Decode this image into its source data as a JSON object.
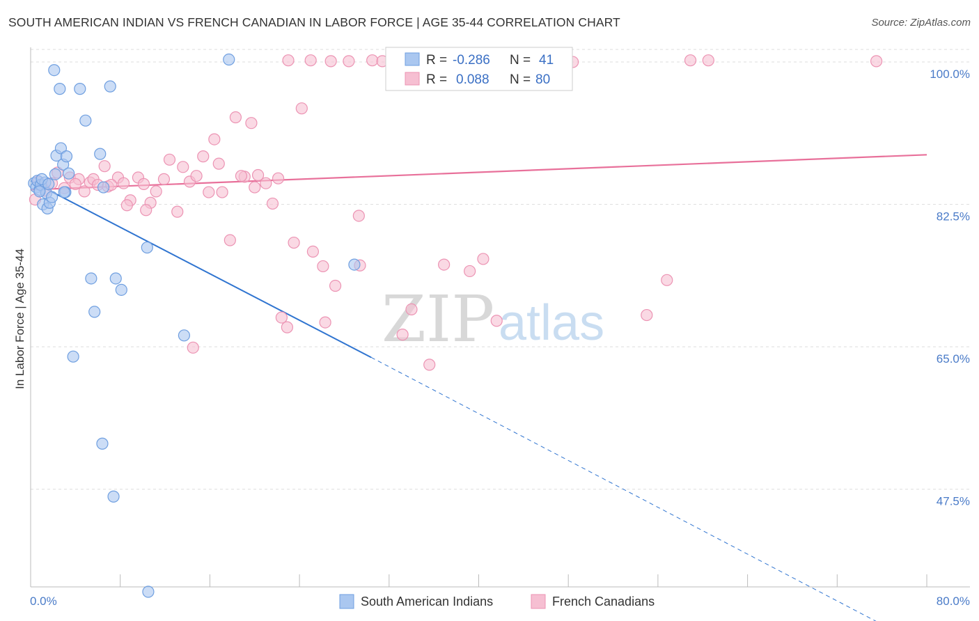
{
  "header": {
    "title": "SOUTH AMERICAN INDIAN VS FRENCH CANADIAN IN LABOR FORCE | AGE 35-44 CORRELATION CHART",
    "source": "Source: ZipAtlas.com"
  },
  "watermark": {
    "zip": "ZIP",
    "atlas": "atlas"
  },
  "colors": {
    "blue_fill": "#aac7f0",
    "blue_stroke": "#6f9fe0",
    "blue_line": "#2f74d0",
    "pink_fill": "#f6bfd2",
    "pink_stroke": "#ec93b3",
    "pink_line": "#e8709a",
    "grid": "#dddddd",
    "axis_text": "#4a7bc8"
  },
  "legend": {
    "rows": [
      {
        "r_label": "R =",
        "r_value": "-0.286",
        "n_label": "N =",
        "n_value": "41"
      },
      {
        "r_label": "R =",
        "r_value": "0.088",
        "n_label": "N =",
        "n_value": "80"
      }
    ]
  },
  "chart_data": {
    "type": "scatter",
    "title": "SOUTH AMERICAN INDIAN VS FRENCH CANADIAN IN LABOR FORCE | AGE 35-44 CORRELATION CHART",
    "xlabel": "",
    "ylabel": "In Labor Force | Age 35-44",
    "xlim": [
      0,
      80
    ],
    "ylim": [
      35.5,
      101.8
    ],
    "x_tick_labels": [
      "0.0%",
      "80.0%"
    ],
    "y_ticks": [
      47.5,
      65.0,
      82.5,
      100.0
    ],
    "y_tick_labels": [
      "47.5%",
      "65.0%",
      "82.5%",
      "100.0%"
    ],
    "grid": true,
    "legend_position": "top-center",
    "series": [
      {
        "name": "South American Indians",
        "r": -0.286,
        "n": 41,
        "trend": {
          "x0": 0,
          "y0": 85.4,
          "x1": 30.4,
          "y1": 63.7,
          "dash_to_x": 77.8,
          "dash_to_y": 29.6
        },
        "points": [
          [
            0.3,
            85.1
          ],
          [
            0.5,
            84.6
          ],
          [
            0.6,
            85.4
          ],
          [
            0.8,
            84.3
          ],
          [
            0.9,
            84.9
          ],
          [
            1.1,
            82.5
          ],
          [
            1.3,
            85.2
          ],
          [
            1.4,
            83.9
          ],
          [
            1.5,
            82.0
          ],
          [
            1.7,
            82.7
          ],
          [
            1.9,
            83.4
          ],
          [
            2.1,
            99.0
          ],
          [
            2.3,
            88.5
          ],
          [
            2.6,
            96.7
          ],
          [
            2.7,
            89.4
          ],
          [
            2.9,
            87.4
          ],
          [
            3.1,
            84.0
          ],
          [
            3.2,
            88.4
          ],
          [
            3.4,
            86.3
          ],
          [
            4.4,
            96.7
          ],
          [
            4.9,
            92.8
          ],
          [
            5.4,
            73.4
          ],
          [
            5.7,
            69.3
          ],
          [
            6.2,
            88.7
          ],
          [
            6.5,
            84.6
          ],
          [
            7.1,
            97.0
          ],
          [
            7.6,
            73.4
          ],
          [
            8.1,
            72.0
          ],
          [
            10.4,
            77.2
          ],
          [
            13.7,
            66.4
          ],
          [
            17.7,
            100.3
          ],
          [
            28.9,
            75.1
          ],
          [
            3.8,
            63.8
          ],
          [
            6.4,
            53.1
          ],
          [
            7.4,
            46.6
          ],
          [
            10.5,
            34.9
          ],
          [
            0.8,
            84.1
          ],
          [
            2.2,
            86.2
          ],
          [
            1.0,
            85.6
          ],
          [
            3.0,
            84.0
          ],
          [
            1.6,
            85.0
          ]
        ]
      },
      {
        "name": "French Canadians",
        "r": 0.088,
        "n": 80,
        "trend": {
          "x0": 0,
          "y0": 84.3,
          "x1": 80,
          "y1": 88.6
        },
        "points": [
          [
            0.4,
            83.1
          ],
          [
            0.7,
            85.3
          ],
          [
            1.0,
            84.8
          ],
          [
            1.3,
            84.2
          ],
          [
            1.9,
            85.1
          ],
          [
            2.4,
            86.4
          ],
          [
            3.0,
            84.5
          ],
          [
            3.5,
            85.8
          ],
          [
            4.3,
            85.6
          ],
          [
            4.8,
            84.1
          ],
          [
            5.3,
            85.2
          ],
          [
            5.6,
            85.6
          ],
          [
            6.0,
            84.9
          ],
          [
            6.6,
            87.2
          ],
          [
            6.9,
            84.7
          ],
          [
            7.8,
            85.8
          ],
          [
            8.3,
            85.1
          ],
          [
            8.9,
            83.0
          ],
          [
            9.6,
            85.8
          ],
          [
            10.1,
            85.0
          ],
          [
            10.7,
            82.7
          ],
          [
            11.2,
            84.1
          ],
          [
            11.9,
            85.6
          ],
          [
            12.4,
            88.0
          ],
          [
            13.1,
            81.6
          ],
          [
            13.6,
            87.1
          ],
          [
            14.2,
            85.3
          ],
          [
            14.8,
            86.0
          ],
          [
            15.4,
            88.4
          ],
          [
            15.9,
            84.0
          ],
          [
            16.4,
            90.5
          ],
          [
            17.1,
            84.0
          ],
          [
            17.8,
            78.1
          ],
          [
            18.3,
            93.2
          ],
          [
            19.1,
            85.9
          ],
          [
            19.7,
            92.5
          ],
          [
            20.3,
            86.1
          ],
          [
            21.0,
            85.1
          ],
          [
            21.6,
            82.6
          ],
          [
            22.4,
            68.6
          ],
          [
            22.9,
            67.4
          ],
          [
            23.5,
            77.8
          ],
          [
            24.2,
            94.3
          ],
          [
            25.2,
            76.7
          ],
          [
            26.1,
            74.9
          ],
          [
            27.2,
            72.5
          ],
          [
            28.4,
            100.1
          ],
          [
            29.3,
            81.1
          ],
          [
            30.5,
            100.2
          ],
          [
            31.4,
            100.1
          ],
          [
            32.3,
            100.3
          ],
          [
            33.2,
            66.5
          ],
          [
            34.0,
            69.6
          ],
          [
            35.6,
            62.8
          ],
          [
            36.9,
            75.1
          ],
          [
            37.8,
            100.2
          ],
          [
            39.2,
            74.3
          ],
          [
            40.4,
            75.8
          ],
          [
            41.6,
            68.2
          ],
          [
            46.6,
            100.2
          ],
          [
            48.4,
            100.0
          ],
          [
            55.0,
            68.9
          ],
          [
            56.8,
            73.2
          ],
          [
            58.9,
            100.2
          ],
          [
            60.5,
            100.2
          ],
          [
            75.5,
            100.1
          ],
          [
            10.3,
            81.8
          ],
          [
            7.2,
            84.9
          ],
          [
            20.0,
            84.6
          ],
          [
            22.1,
            85.7
          ],
          [
            23.0,
            100.2
          ],
          [
            25.0,
            100.2
          ],
          [
            26.3,
            68.0
          ],
          [
            4.0,
            85.0
          ],
          [
            8.6,
            82.4
          ],
          [
            14.5,
            64.9
          ],
          [
            18.8,
            86.0
          ],
          [
            29.4,
            75.0
          ],
          [
            26.8,
            100.1
          ],
          [
            16.8,
            87.5
          ]
        ]
      }
    ]
  },
  "bottom_legend": {
    "items": [
      {
        "label": "South American Indians"
      },
      {
        "label": "French Canadians"
      }
    ]
  }
}
